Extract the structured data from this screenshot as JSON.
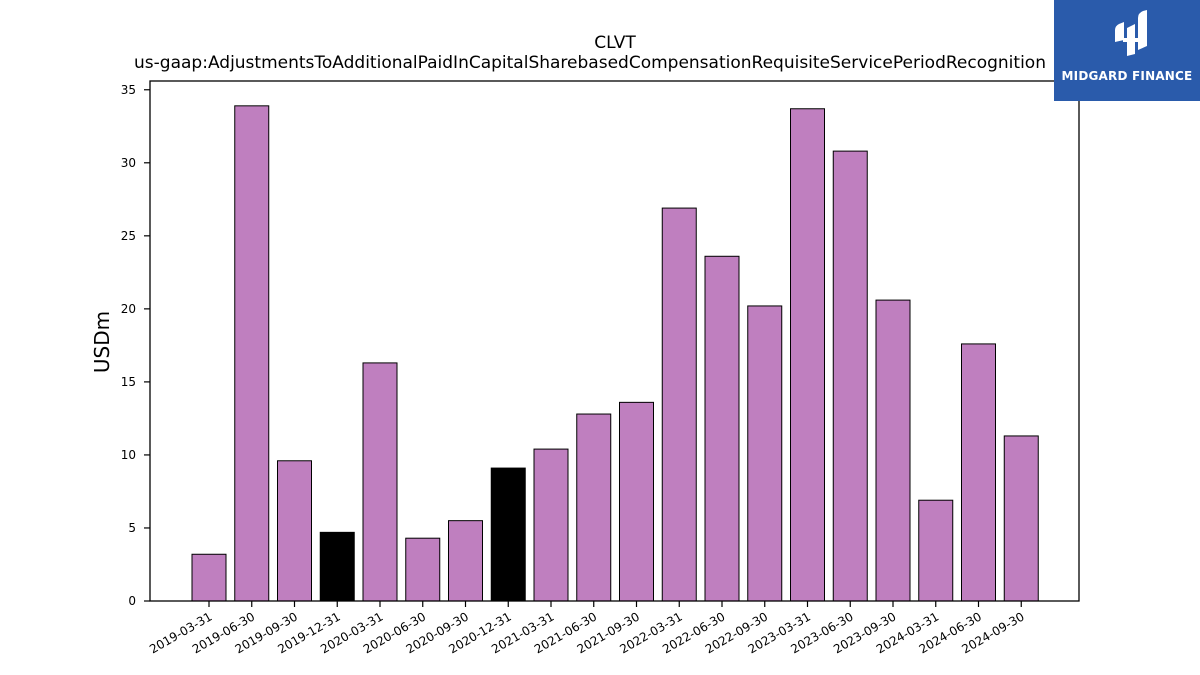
{
  "chart_data": {
    "type": "bar",
    "title": "CLVT",
    "subtitle": "us-gaap:AdjustmentsToAdditionalPaidInCapitalSharebasedCompensationRequisiteServicePeriodRecognition",
    "xlabel": "",
    "ylabel": "USDm",
    "ylim": [
      0,
      35.6
    ],
    "yticks": [
      0,
      5,
      10,
      15,
      20,
      25,
      30,
      35
    ],
    "grid": false,
    "categories": [
      "2019-03-31",
      "2019-06-30",
      "2019-09-30",
      "2019-12-31",
      "2020-03-31",
      "2020-06-30",
      "2020-09-30",
      "2020-12-31",
      "2021-03-31",
      "2021-06-30",
      "2021-09-30",
      "2022-03-31",
      "2022-06-30",
      "2022-09-30",
      "2023-03-31",
      "2023-06-30",
      "2023-09-30",
      "2024-03-31",
      "2024-06-30",
      "2024-09-30"
    ],
    "values": [
      3.2,
      33.9,
      9.6,
      4.7,
      16.3,
      4.3,
      5.5,
      9.1,
      10.4,
      12.8,
      13.6,
      26.9,
      23.6,
      20.2,
      33.7,
      30.8,
      20.6,
      6.9,
      17.6,
      11.3
    ],
    "highlighted": [
      "2019-12-31",
      "2020-12-31"
    ],
    "colors": {
      "bar": "#bf7fbf",
      "highlight": "#000000",
      "edge": "#000000"
    }
  },
  "logo": {
    "text": "MIDGARD FINANCE",
    "bg": "#2a5bab"
  }
}
